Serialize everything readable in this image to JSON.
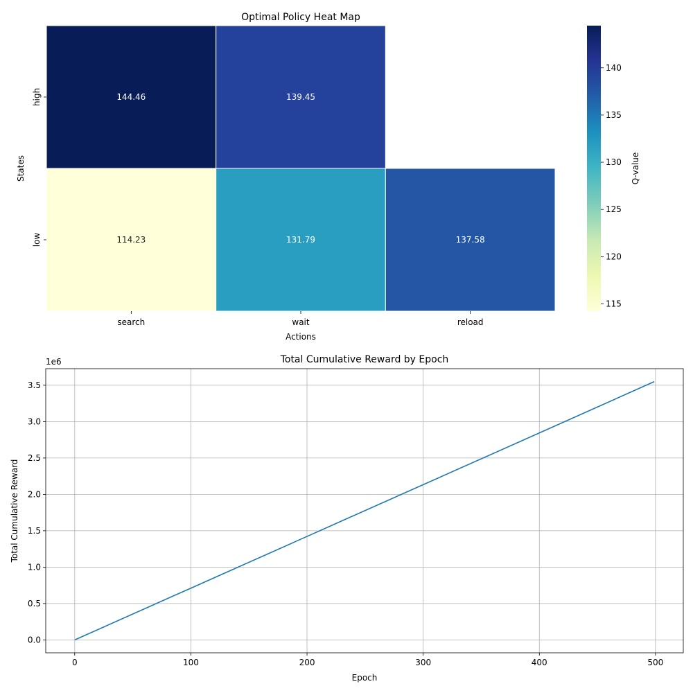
{
  "chart_data": [
    {
      "type": "heatmap",
      "title": "Optimal Policy Heat Map",
      "xlabel": "Actions",
      "ylabel": "States",
      "x_categories": [
        "search",
        "wait",
        "reload"
      ],
      "y_categories": [
        "high",
        "low"
      ],
      "values": [
        [
          144.46,
          139.45,
          null
        ],
        [
          114.23,
          131.79,
          137.58
        ]
      ],
      "value_labels": [
        [
          "144.46",
          "139.45",
          ""
        ],
        [
          "114.23",
          "131.79",
          "137.58"
        ]
      ],
      "colorbar": {
        "label": "Q-value",
        "range": [
          114.23,
          144.46
        ],
        "ticks": [
          "115",
          "120",
          "125",
          "130",
          "135",
          "140"
        ],
        "tick_values": [
          115,
          120,
          125,
          130,
          135,
          140
        ],
        "colormap": [
          "#ffffd9",
          "#edf8b1",
          "#c7e9b4",
          "#7fcdbb",
          "#41b6c4",
          "#1d91c0",
          "#225ea8",
          "#253494",
          "#081d58"
        ]
      }
    },
    {
      "type": "line",
      "title": "Total Cumulative Reward by Epoch",
      "xlabel": "Epoch",
      "ylabel": "Total Cumulative Reward",
      "offset_label": "1e6",
      "x": [
        0,
        100,
        200,
        300,
        400,
        499
      ],
      "y": [
        0.0,
        0.711,
        1.422,
        2.133,
        2.844,
        3.55
      ],
      "xlim": [
        -24.95,
        523.95
      ],
      "ylim": [
        -0.1775,
        3.7275
      ],
      "xticks": [
        "0",
        "100",
        "200",
        "300",
        "400",
        "500"
      ],
      "xtick_values": [
        0,
        100,
        200,
        300,
        400,
        500
      ],
      "yticks": [
        "0.0",
        "0.5",
        "1.0",
        "1.5",
        "2.0",
        "2.5",
        "3.0",
        "3.5"
      ],
      "ytick_values": [
        0.0,
        0.5,
        1.0,
        1.5,
        2.0,
        2.5,
        3.0,
        3.5
      ],
      "grid": true,
      "line_color": "#1f77b4"
    }
  ]
}
